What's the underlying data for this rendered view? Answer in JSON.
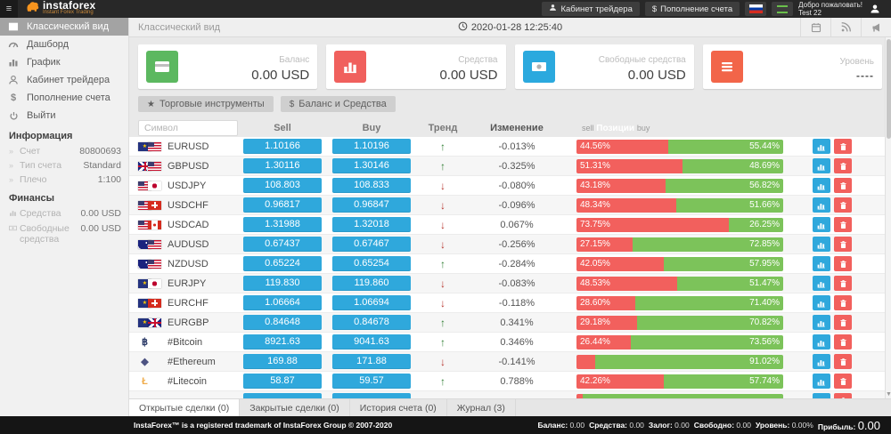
{
  "topbar": {
    "menu_icon": "≡",
    "brand": "instaforex",
    "tagline": "Instant Forex Trading",
    "cabinet_button": "Кабинет трейдера",
    "deposit_symbol": "$",
    "deposit_button": "Пополнение счета",
    "welcome_line1": "Добро пожаловать!",
    "welcome_line2": "Test 22"
  },
  "sidebar": {
    "items": [
      {
        "label": "Классический вид"
      },
      {
        "label": "Дашборд"
      },
      {
        "label": "График"
      },
      {
        "label": "Кабинет трейдера"
      },
      {
        "label": "Пополнение счета"
      },
      {
        "label": "Выйти"
      }
    ],
    "info_header": "Информация",
    "info_rows": [
      {
        "label": "Счет",
        "value": "80800693"
      },
      {
        "label": "Тип счета",
        "value": "Standard"
      },
      {
        "label": "Плечо",
        "value": "1:100"
      }
    ],
    "finance_header": "Финансы",
    "finance_rows": [
      {
        "label": "Средства",
        "value": "0.00 USD"
      },
      {
        "label": "Свободные средства",
        "value": "0.00 USD"
      }
    ]
  },
  "main_header": {
    "title": "Классический вид",
    "timestamp": "2020-01-28 12:25:40"
  },
  "cards": [
    {
      "label": "Баланс",
      "value": "0.00 USD",
      "color": "#5cb860"
    },
    {
      "label": "Средства",
      "value": "0.00 USD",
      "color": "#f0605d"
    },
    {
      "label": "Свободные средства",
      "value": "0.00 USD",
      "color": "#2ba9de"
    },
    {
      "label": "Уровень",
      "value": "----",
      "color": "#f26549"
    }
  ],
  "toolbar": {
    "instruments_icon": "★",
    "instruments_button": "Торговые инструменты",
    "balance_icon": "$",
    "balance_button": "Баланс и Средства"
  },
  "table": {
    "symbol_placeholder": "Символ",
    "headers": {
      "sell": "Sell",
      "buy": "Buy",
      "trend": "Тренд",
      "change": "Изменение",
      "positions_sell": "sell",
      "positions": "Позиции",
      "positions_buy": "buy"
    },
    "rows": [
      {
        "symbol": "EURUSD",
        "icon": {
          "type": "flags",
          "f1": "eu",
          "f2": "us"
        },
        "sell": "1.10166",
        "buy": "1.10196",
        "trend": "up",
        "change": "-0.013%",
        "sell_pct": 44.56,
        "sell_label": "44.56%",
        "buy_pct": 55.44,
        "buy_label": "55.44%"
      },
      {
        "symbol": "GBPUSD",
        "icon": {
          "type": "flags",
          "f1": "gb",
          "f2": "us"
        },
        "sell": "1.30116",
        "buy": "1.30146",
        "trend": "up",
        "change": "-0.325%",
        "sell_pct": 51.31,
        "sell_label": "51.31%",
        "buy_pct": 48.69,
        "buy_label": "48.69%"
      },
      {
        "symbol": "USDJPY",
        "icon": {
          "type": "flags",
          "f1": "us",
          "f2": "jp"
        },
        "sell": "108.803",
        "buy": "108.833",
        "trend": "down",
        "change": "-0.080%",
        "sell_pct": 43.18,
        "sell_label": "43.18%",
        "buy_pct": 56.82,
        "buy_label": "56.82%"
      },
      {
        "symbol": "USDCHF",
        "icon": {
          "type": "flags",
          "f1": "us",
          "f2": "ch"
        },
        "sell": "0.96817",
        "buy": "0.96847",
        "trend": "down",
        "change": "-0.096%",
        "sell_pct": 48.34,
        "sell_label": "48.34%",
        "buy_pct": 51.66,
        "buy_label": "51.66%"
      },
      {
        "symbol": "USDCAD",
        "icon": {
          "type": "flags",
          "f1": "us",
          "f2": "ca"
        },
        "sell": "1.31988",
        "buy": "1.32018",
        "trend": "down",
        "change": "0.067%",
        "sell_pct": 73.75,
        "sell_label": "73.75%",
        "buy_pct": 26.25,
        "buy_label": "26.25%"
      },
      {
        "symbol": "AUDUSD",
        "icon": {
          "type": "flags",
          "f1": "au",
          "f2": "us"
        },
        "sell": "0.67437",
        "buy": "0.67467",
        "trend": "down",
        "change": "-0.256%",
        "sell_pct": 27.15,
        "sell_label": "27.15%",
        "buy_pct": 72.85,
        "buy_label": "72.85%"
      },
      {
        "symbol": "NZDUSD",
        "icon": {
          "type": "flags",
          "f1": "nz",
          "f2": "us"
        },
        "sell": "0.65224",
        "buy": "0.65254",
        "trend": "up",
        "change": "-0.284%",
        "sell_pct": 42.05,
        "sell_label": "42.05%",
        "buy_pct": 57.95,
        "buy_label": "57.95%"
      },
      {
        "symbol": "EURJPY",
        "icon": {
          "type": "flags",
          "f1": "eu",
          "f2": "jp"
        },
        "sell": "119.830",
        "buy": "119.860",
        "trend": "down",
        "change": "-0.083%",
        "sell_pct": 48.53,
        "sell_label": "48.53%",
        "buy_pct": 51.47,
        "buy_label": "51.47%"
      },
      {
        "symbol": "EURCHF",
        "icon": {
          "type": "flags",
          "f1": "eu",
          "f2": "ch"
        },
        "sell": "1.06664",
        "buy": "1.06694",
        "trend": "down",
        "change": "-0.118%",
        "sell_pct": 28.6,
        "sell_label": "28.60%",
        "buy_pct": 71.4,
        "buy_label": "71.40%"
      },
      {
        "symbol": "EURGBP",
        "icon": {
          "type": "flags",
          "f1": "eu",
          "f2": "gb"
        },
        "sell": "0.84648",
        "buy": "0.84678",
        "trend": "up",
        "change": "0.341%",
        "sell_pct": 29.18,
        "sell_label": "29.18%",
        "buy_pct": 70.82,
        "buy_label": "70.82%"
      },
      {
        "symbol": "#Bitcoin",
        "icon": {
          "type": "char",
          "char": "฿",
          "color": "#2b3a67"
        },
        "sell": "8921.63",
        "buy": "9041.63",
        "trend": "up",
        "change": "0.346%",
        "sell_pct": 26.44,
        "sell_label": "26.44%",
        "buy_pct": 73.56,
        "buy_label": "73.56%"
      },
      {
        "symbol": "#Ethereum",
        "icon": {
          "type": "char",
          "char": "◆",
          "color": "#4d5382"
        },
        "sell": "169.88",
        "buy": "171.88",
        "trend": "down",
        "change": "-0.141%",
        "sell_pct": 8.98,
        "sell_label": "",
        "buy_pct": 91.02,
        "buy_label": "91.02%"
      },
      {
        "symbol": "#Litecoin",
        "icon": {
          "type": "char",
          "char": "Ł",
          "color": "#f0ad4e"
        },
        "sell": "58.87",
        "buy": "59.57",
        "trend": "up",
        "change": "0.788%",
        "sell_pct": 42.26,
        "sell_label": "42.26%",
        "buy_pct": 57.74,
        "buy_label": "57.74%"
      },
      {
        "symbol": "",
        "icon": {
          "type": "char",
          "char": "▪",
          "color": "#2fa8dc"
        },
        "sell": "",
        "buy": "",
        "trend": "",
        "change": "",
        "sell_pct": 3,
        "sell_label": "",
        "buy_pct": 97,
        "buy_label": ""
      }
    ]
  },
  "tabs": [
    {
      "label": "Открытые сделки (0)",
      "active": true
    },
    {
      "label": "Закрытые сделки (0)",
      "active": false
    },
    {
      "label": "История счета (0)",
      "active": false
    },
    {
      "label": "Журнал (3)",
      "active": false
    }
  ],
  "footer": {
    "copyright": "InstaForex™ is a registered trademark of InstaForex Group © 2007-2020",
    "stats": [
      {
        "label": "Баланс:",
        "value": "0.00"
      },
      {
        "label": "Средства:",
        "value": "0.00"
      },
      {
        "label": "Залог:",
        "value": "0.00"
      },
      {
        "label": "Свободно:",
        "value": "0.00"
      },
      {
        "label": "Уровень:",
        "value": "0.00%"
      },
      {
        "label": "Прибыль:",
        "value": "0.00",
        "big": true
      }
    ]
  },
  "colors": {
    "price_blue": "#2fa8dc",
    "sell_red": "#f2605d",
    "buy_green": "#7cc35a",
    "trend_up": "#2e7d32",
    "trend_down": "#b7342c",
    "brand_orange": "#f7941e"
  }
}
